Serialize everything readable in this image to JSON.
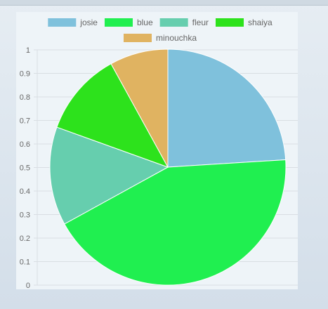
{
  "chart_data": {
    "type": "pie",
    "title": "",
    "legend_position": "top",
    "series": [
      {
        "name": "josie",
        "value": 24,
        "color": "#7fc1dc"
      },
      {
        "name": "blue",
        "value": 43,
        "color": "#20ef50"
      },
      {
        "name": "fleur",
        "value": 13.5,
        "color": "#66ceae"
      },
      {
        "name": "shaiya",
        "value": 11.5,
        "color": "#2de21c"
      },
      {
        "name": "minouchka",
        "value": 8,
        "color": "#e0b361"
      }
    ],
    "y_ticks": [
      "0",
      "0.1",
      "0.2",
      "0.3",
      "0.4",
      "0.5",
      "0.6",
      "0.7",
      "0.8",
      "0.9",
      "1"
    ],
    "ylim": [
      0,
      1
    ],
    "grid": true
  }
}
